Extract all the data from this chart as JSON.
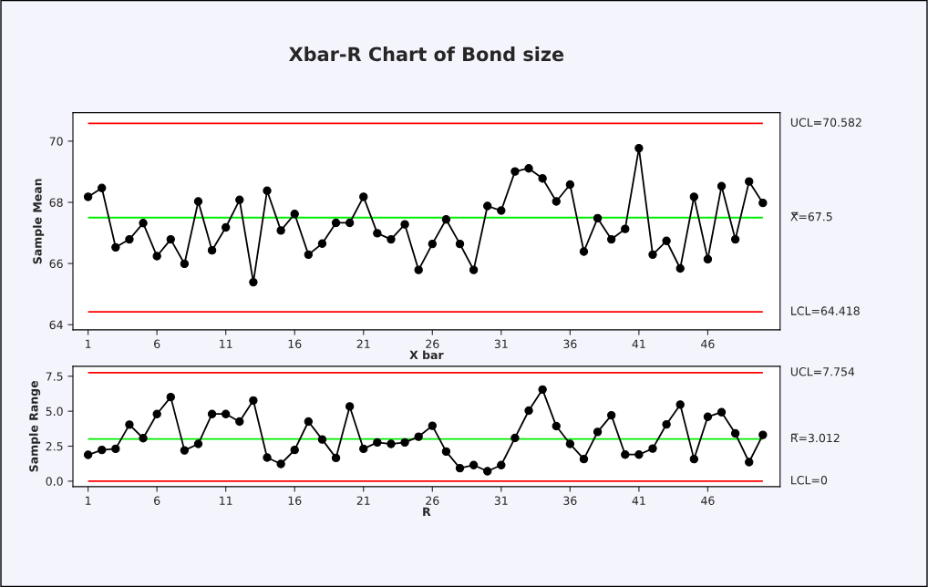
{
  "chart_data": [
    {
      "type": "line",
      "title": "Xbar-R Chart of Bond size",
      "xlabel": "X bar",
      "ylabel": "Sample Mean",
      "marker": "circle",
      "line_style": "solid",
      "grid": false,
      "legend": false,
      "x": [
        1,
        2,
        3,
        4,
        5,
        6,
        7,
        8,
        9,
        10,
        11,
        12,
        13,
        14,
        15,
        16,
        17,
        18,
        19,
        20,
        21,
        22,
        23,
        24,
        25,
        26,
        27,
        28,
        29,
        30,
        31,
        32,
        33,
        34,
        35,
        36,
        37,
        38,
        39,
        40,
        41,
        42,
        43,
        44,
        45,
        46,
        47,
        48,
        49,
        50
      ],
      "series": [
        {
          "color": "#000000",
          "values": [
            68.18,
            68.47,
            66.53,
            66.79,
            67.32,
            66.24,
            66.79,
            65.99,
            68.03,
            66.43,
            67.18,
            68.08,
            65.39,
            68.38,
            67.08,
            67.62,
            66.29,
            66.65,
            67.33,
            67.33,
            68.18,
            66.99,
            66.79,
            67.28,
            65.79,
            66.64,
            67.44,
            66.64,
            65.79,
            67.88,
            67.73,
            69.01,
            69.11,
            68.78,
            68.03,
            68.58,
            66.39,
            67.48,
            66.79,
            67.13,
            69.77,
            66.29,
            66.74,
            65.84,
            68.18,
            66.14,
            68.53,
            66.79,
            68.68,
            67.98
          ]
        }
      ],
      "xlim": [
        -0.1,
        51.25
      ],
      "xticks": [
        1,
        6,
        11,
        16,
        21,
        26,
        31,
        36,
        41,
        46
      ],
      "ylim": [
        63.83,
        70.93
      ],
      "yticks": [
        64,
        66,
        68,
        70
      ],
      "ref_lines": [
        {
          "axis": "y",
          "value": 70.582,
          "label": "UCL=70.582",
          "color": "#ff0000"
        },
        {
          "axis": "y",
          "value": 67.5,
          "label": "X̿=67.5",
          "color": "#00ee00"
        },
        {
          "axis": "y",
          "value": 64.418,
          "label": "LCL=64.418",
          "color": "#ff0000"
        }
      ]
    },
    {
      "type": "line",
      "xlabel": "R",
      "ylabel": "Sample Range",
      "marker": "circle",
      "line_style": "solid",
      "grid": false,
      "legend": false,
      "x": [
        1,
        2,
        3,
        4,
        5,
        6,
        7,
        8,
        9,
        10,
        11,
        12,
        13,
        14,
        15,
        16,
        17,
        18,
        19,
        20,
        21,
        22,
        23,
        24,
        25,
        26,
        27,
        28,
        29,
        30,
        31,
        32,
        33,
        34,
        35,
        36,
        37,
        38,
        39,
        40,
        41,
        42,
        43,
        44,
        45,
        46,
        47,
        48,
        49,
        50
      ],
      "series": [
        {
          "color": "#000000",
          "values": [
            1.88,
            2.23,
            2.31,
            4.04,
            3.07,
            4.8,
            6.01,
            2.2,
            2.66,
            4.8,
            4.8,
            4.26,
            5.77,
            1.69,
            1.23,
            2.23,
            4.26,
            2.98,
            1.66,
            5.34,
            2.31,
            2.77,
            2.66,
            2.77,
            3.18,
            3.96,
            2.12,
            0.93,
            1.15,
            0.71,
            1.15,
            3.09,
            5.04,
            6.55,
            3.93,
            2.66,
            1.58,
            3.52,
            4.71,
            1.9,
            1.9,
            2.33,
            4.06,
            5.47,
            1.58,
            4.6,
            4.93,
            3.41,
            1.36,
            3.31
          ]
        }
      ],
      "xlim": [
        -0.1,
        51.25
      ],
      "xticks": [
        1,
        6,
        11,
        16,
        21,
        26,
        31,
        36,
        41,
        46
      ],
      "ylim": [
        -0.39,
        8.21
      ],
      "yticks": [
        {
          "value": 0,
          "label": "0.0"
        },
        {
          "value": 2.5,
          "label": "2.5"
        },
        {
          "value": 5,
          "label": "5.0"
        },
        {
          "value": 7.5,
          "label": "7.5"
        }
      ],
      "ref_lines": [
        {
          "axis": "y",
          "value": 7.754,
          "label": "UCL=7.754",
          "color": "#ff0000"
        },
        {
          "axis": "y",
          "value": 3.012,
          "label": "R̅=3.012",
          "color": "#00ee00"
        },
        {
          "axis": "y",
          "value": 0,
          "label": "LCL=0",
          "color": "#ff0000"
        }
      ]
    }
  ]
}
